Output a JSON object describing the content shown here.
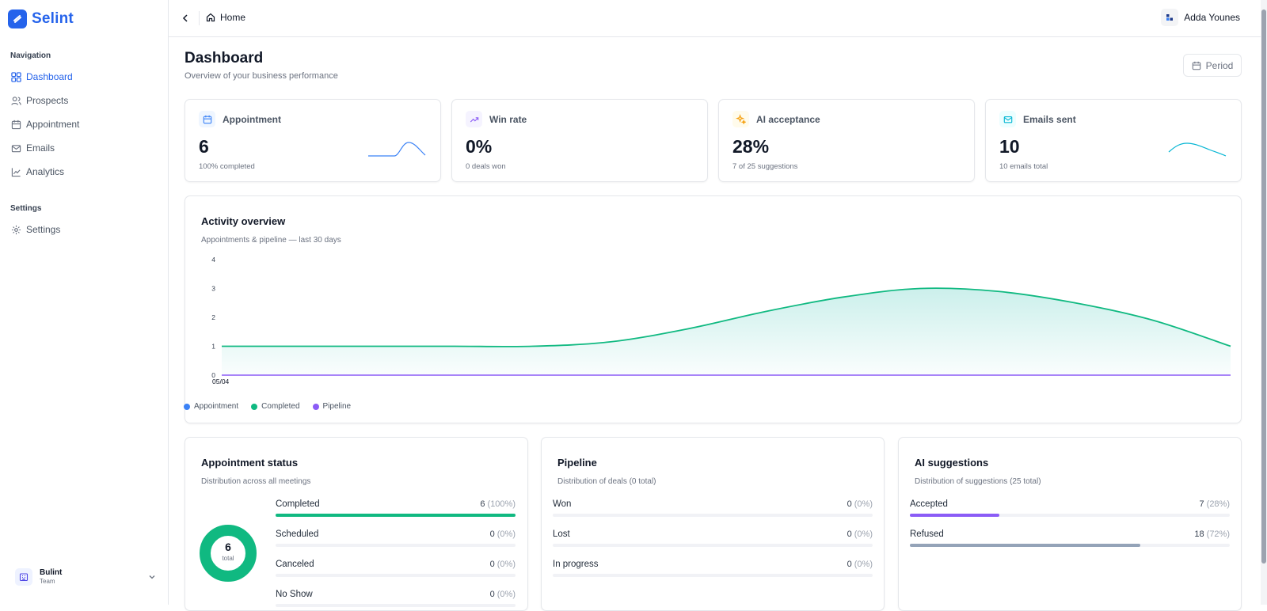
{
  "app": {
    "name": "Selint"
  },
  "sidebar": {
    "sections": [
      {
        "title": "Navigation"
      },
      {
        "title": "Settings"
      }
    ],
    "items": [
      {
        "label": "Dashboard",
        "icon": "dashboard-icon",
        "active": true
      },
      {
        "label": "Prospects",
        "icon": "users-icon"
      },
      {
        "label": "Appointment",
        "icon": "calendar-icon"
      },
      {
        "label": "Emails",
        "icon": "mail-icon"
      },
      {
        "label": "Analytics",
        "icon": "chart-line-icon"
      },
      {
        "label": "Settings",
        "icon": "gear-icon"
      }
    ],
    "team": {
      "name": "Bulint",
      "role": "Team"
    }
  },
  "topbar": {
    "breadcrumb": "Home",
    "user": "Adda Younes"
  },
  "page": {
    "title": "Dashboard",
    "subtitle": "Overview of your business performance",
    "period_label": "Period"
  },
  "stats": [
    {
      "label": "Appointment",
      "value": "6",
      "sub": "100% completed",
      "color": "#3b82f6",
      "bg": "#eff6ff"
    },
    {
      "label": "Win rate",
      "value": "0%",
      "sub": "0 deals won",
      "color": "#8b5cf6",
      "bg": "#f5f3ff"
    },
    {
      "label": "AI acceptance",
      "value": "28%",
      "sub": "7 of 25 suggestions",
      "color": "#f59e0b",
      "bg": "#fffbeb"
    },
    {
      "label": "Emails sent",
      "value": "10",
      "sub": "10 emails total",
      "color": "#06b6d4",
      "bg": "#ecfeff"
    }
  ],
  "activity": {
    "title": "Activity overview",
    "subtitle": "Appointments & pipeline — last 30 days",
    "legend": [
      {
        "label": "Appointment",
        "color": "#3b82f6"
      },
      {
        "label": "Completed",
        "color": "#10b981"
      },
      {
        "label": "Pipeline",
        "color": "#8b5cf6"
      }
    ]
  },
  "chart_data": {
    "type": "area",
    "x": [
      "05/04"
    ],
    "y_ticks": [
      "0",
      "1",
      "2",
      "3",
      "4"
    ],
    "ylim": [
      0,
      4
    ],
    "completed_curve": [
      1,
      1,
      1,
      1,
      1,
      1.15,
      1.6,
      2.2,
      2.7,
      3.0,
      2.9,
      2.5,
      1.9,
      1.0
    ],
    "pipeline_curve": [
      0,
      0,
      0,
      0,
      0,
      0,
      0,
      0,
      0,
      0,
      0,
      0,
      0,
      0
    ],
    "series": [
      {
        "name": "Completed",
        "color": "#10b981"
      },
      {
        "name": "Pipeline",
        "color": "#8b5cf6"
      }
    ],
    "grid": false,
    "legend": "bottom-left"
  },
  "status": {
    "title": "Appointment status",
    "subtitle": "Distribution across all meetings",
    "total": "6",
    "total_label": "total",
    "rows": [
      {
        "label": "Completed",
        "count": "6",
        "pct": "(100%)",
        "fraction": 1.0,
        "color": "#10b981"
      },
      {
        "label": "Scheduled",
        "count": "0",
        "pct": "(0%)",
        "fraction": 0,
        "color": "#3b82f6"
      },
      {
        "label": "Canceled",
        "count": "0",
        "pct": "(0%)",
        "fraction": 0,
        "color": "#ef4444"
      },
      {
        "label": "No Show",
        "count": "0",
        "pct": "(0%)",
        "fraction": 0,
        "color": "#f59e0b"
      }
    ]
  },
  "pipeline": {
    "title": "Pipeline",
    "subtitle": "Distribution of deals (0 total)",
    "rows": [
      {
        "label": "Won",
        "count": "0",
        "pct": "(0%)",
        "fraction": 0,
        "color": "#10b981"
      },
      {
        "label": "Lost",
        "count": "0",
        "pct": "(0%)",
        "fraction": 0,
        "color": "#ef4444"
      },
      {
        "label": "In progress",
        "count": "0",
        "pct": "(0%)",
        "fraction": 0,
        "color": "#3b82f6"
      }
    ]
  },
  "ai": {
    "title": "AI suggestions",
    "subtitle": "Distribution of suggestions (25 total)",
    "rows": [
      {
        "label": "Accepted",
        "count": "7",
        "pct": "(28%)",
        "fraction": 0.28,
        "color": "#8b5cf6"
      },
      {
        "label": "Refused",
        "count": "18",
        "pct": "(72%)",
        "fraction": 0.72,
        "color": "#94a3b8"
      }
    ]
  }
}
